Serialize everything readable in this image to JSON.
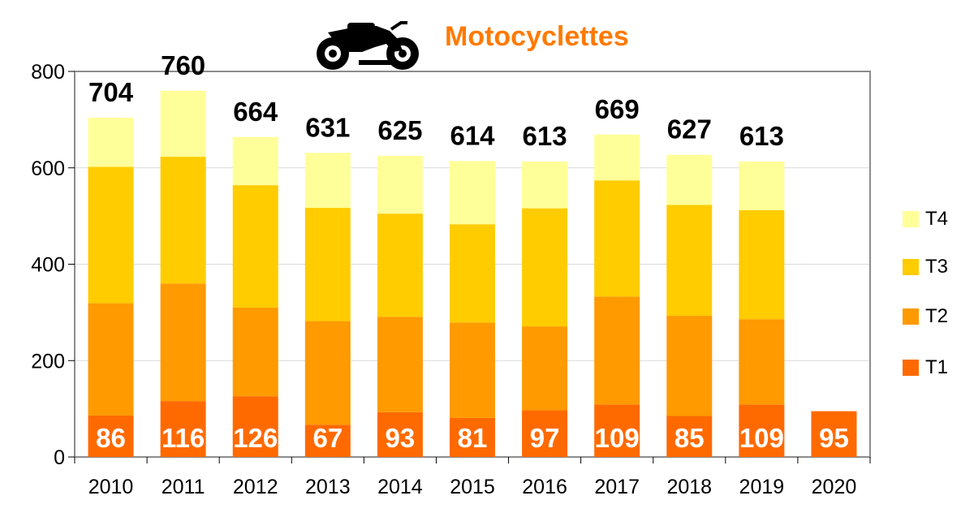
{
  "chart_data": {
    "type": "bar",
    "stacked": true,
    "title": "Motocyclettes",
    "icon": "motorcycle-icon",
    "categories": [
      "2010",
      "2011",
      "2012",
      "2013",
      "2014",
      "2015",
      "2016",
      "2017",
      "2018",
      "2019",
      "2020"
    ],
    "series": [
      {
        "name": "T1",
        "color": "#ff6a00",
        "values": [
          86,
          116,
          126,
          67,
          93,
          81,
          97,
          109,
          85,
          109,
          95
        ]
      },
      {
        "name": "T2",
        "color": "#ff9a00",
        "values": [
          233,
          244,
          184,
          215,
          198,
          198,
          174,
          224,
          208,
          177,
          null
        ]
      },
      {
        "name": "T3",
        "color": "#ffcc00",
        "values": [
          283,
          263,
          254,
          235,
          214,
          204,
          245,
          241,
          230,
          226,
          null
        ]
      },
      {
        "name": "T4",
        "color": "#ffff99",
        "values": [
          102,
          137,
          100,
          114,
          120,
          131,
          97,
          95,
          104,
          101,
          null
        ]
      }
    ],
    "totals": [
      704,
      760,
      664,
      631,
      625,
      614,
      613,
      669,
      627,
      613,
      null
    ],
    "ylim": [
      0,
      800
    ],
    "yticks": [
      0,
      200,
      400,
      600,
      800
    ],
    "grid": true,
    "legend_position": "right"
  }
}
